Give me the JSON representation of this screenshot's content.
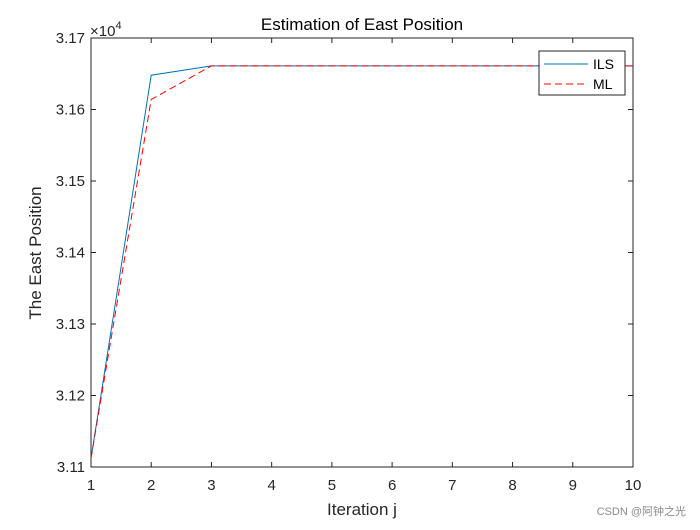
{
  "chart_data": {
    "type": "line",
    "title": "Estimation of East Position",
    "xlabel": "Iteration j",
    "ylabel": "The East Position",
    "y_exponent_label": "×10",
    "y_exponent_power": "4",
    "xlim": [
      1,
      10
    ],
    "ylim": [
      3.11,
      3.17
    ],
    "x_ticks": [
      1,
      2,
      3,
      4,
      5,
      6,
      7,
      8,
      9,
      10
    ],
    "x_tick_labels": [
      "1",
      "2",
      "3",
      "4",
      "5",
      "6",
      "7",
      "8",
      "9",
      "10"
    ],
    "y_ticks": [
      3.11,
      3.12,
      3.13,
      3.14,
      3.15,
      3.16,
      3.17
    ],
    "y_tick_labels": [
      "3.11",
      "3.12",
      "3.13",
      "3.14",
      "3.15",
      "3.16",
      "3.17"
    ],
    "grid": false,
    "legend_position": "top-right",
    "x": [
      1,
      2,
      3,
      4,
      5,
      6,
      7,
      8,
      9,
      10
    ],
    "series": [
      {
        "name": "ILS",
        "color": "#0072BD",
        "line_style": "solid",
        "values": [
          3.1112,
          3.1648,
          3.1661,
          3.1661,
          3.1661,
          3.1661,
          3.1661,
          3.1661,
          3.1661,
          3.1661
        ]
      },
      {
        "name": "ML",
        "color": "#FF0000",
        "line_style": "dashed",
        "values": [
          3.1112,
          3.1614,
          3.1661,
          3.1661,
          3.1661,
          3.1661,
          3.1661,
          3.1661,
          3.1661,
          3.1661
        ]
      }
    ]
  },
  "watermark": "CSDN @阿钟之光"
}
